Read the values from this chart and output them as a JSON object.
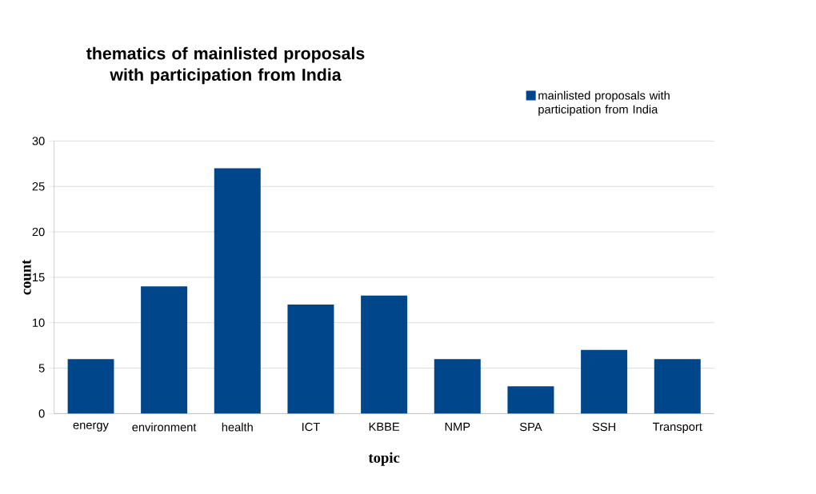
{
  "chart_data": {
    "type": "bar",
    "title": "thematics of mainlisted proposals with participation from  India",
    "xlabel": "topic",
    "ylabel": "count",
    "categories": [
      "energy",
      "environment",
      "health",
      "ICT",
      "KBBE",
      "NMP",
      "SPA",
      "SSH",
      "Transport"
    ],
    "series": [
      {
        "name": "mainlisted proposals with participation from India",
        "color": "#00468b",
        "values": [
          6,
          14,
          27,
          12,
          13,
          6,
          3,
          7,
          6
        ]
      }
    ],
    "ylim": [
      0,
      30
    ],
    "yticks": [
      0,
      5,
      10,
      15,
      20,
      25,
      30
    ],
    "grid": "y",
    "legend": "top right"
  }
}
